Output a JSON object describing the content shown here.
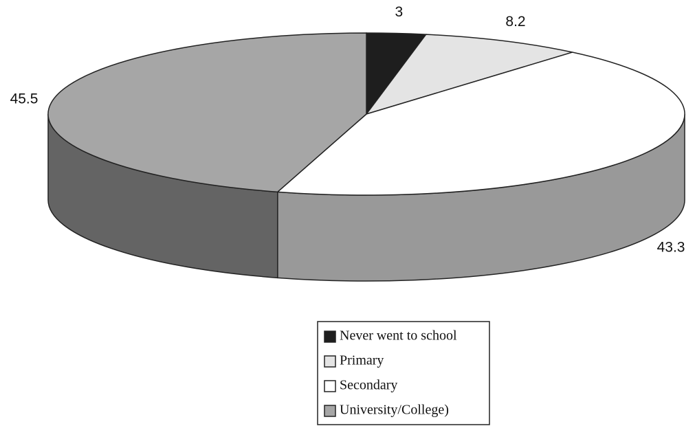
{
  "chart_data": {
    "type": "pie3d",
    "categories": [
      "Never went to school",
      "Primary",
      "Secondary",
      "University/College)"
    ],
    "values": [
      3,
      8.2,
      43.3,
      45.5
    ],
    "colors": [
      "#1e1e1e",
      "#e4e4e4",
      "#ffffff",
      "#a6a6a6"
    ],
    "legend": "bottom"
  }
}
